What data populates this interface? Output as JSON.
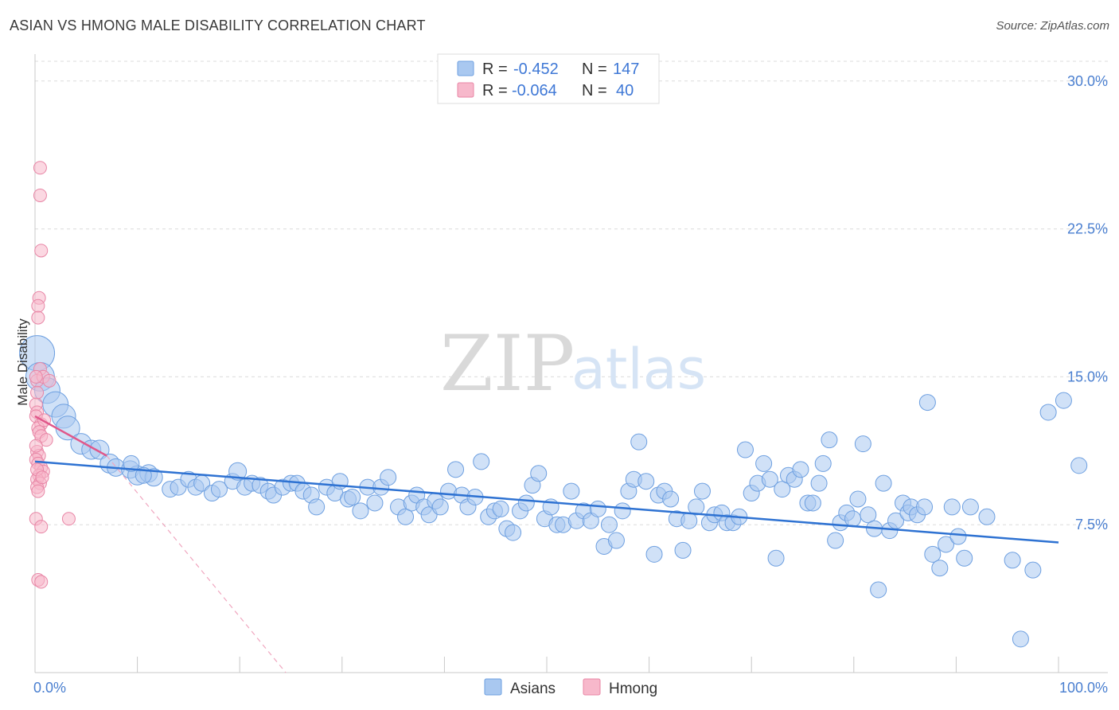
{
  "header": {
    "title": "ASIAN VS HMONG MALE DISABILITY CORRELATION CHART",
    "source": "Source: ZipAtlas.com"
  },
  "watermark": {
    "zip": "ZIP",
    "atlas": "atlas"
  },
  "legend": {
    "rows": [
      {
        "r_label": "R =",
        "r_value": "-0.452",
        "n_label": "N =",
        "n_value": "147",
        "color": "#a9c8f0",
        "stroke": "#6d9fe0"
      },
      {
        "r_label": "R =",
        "r_value": "-0.064",
        "n_label": "N =",
        "n_value": "40",
        "color": "#f7b8cb",
        "stroke": "#e886a6"
      }
    ]
  },
  "bottom_legend": [
    {
      "label": "Asians",
      "color": "#a9c8f0",
      "stroke": "#6d9fe0"
    },
    {
      "label": "Hmong",
      "color": "#f7b8cb",
      "stroke": "#e886a6"
    }
  ],
  "chart_data": {
    "type": "scatter",
    "title": "ASIAN VS HMONG MALE DISABILITY CORRELATION CHART",
    "ylabel": "Male Disability",
    "xlabel": "",
    "xlim": [
      0,
      100
    ],
    "ylim": [
      0,
      31.0
    ],
    "x_tick_labels": [
      {
        "value": 0,
        "label": "0.0%"
      },
      {
        "value": 100,
        "label": "100.0%"
      }
    ],
    "x_minor_ticks": [
      10,
      20,
      30,
      40,
      50,
      60,
      70,
      80,
      90
    ],
    "y_ticks": [
      {
        "value": 7.5,
        "label": "7.5%"
      },
      {
        "value": 15.0,
        "label": "15.0%"
      },
      {
        "value": 22.5,
        "label": "22.5%"
      },
      {
        "value": 30.0,
        "label": "30.0%"
      }
    ],
    "grid": "horizontal-dashed",
    "legend_position": "top-center",
    "series": [
      {
        "name": "Asians",
        "color": "#a9c8f0",
        "stroke": "#6d9fe0",
        "trend": {
          "x": [
            0,
            100
          ],
          "y": [
            10.7,
            6.6
          ],
          "color": "#2e72d2"
        },
        "points": [
          [
            0.2,
            16.2,
            22
          ],
          [
            0.5,
            15.0,
            18
          ],
          [
            1.2,
            14.3,
            16
          ],
          [
            2.0,
            13.6,
            16
          ],
          [
            2.8,
            13.0,
            15
          ],
          [
            3.2,
            12.4,
            15
          ],
          [
            4.5,
            11.6,
            13
          ],
          [
            5.5,
            11.3,
            12
          ],
          [
            6.3,
            11.3,
            12
          ],
          [
            7.3,
            10.6,
            12
          ],
          [
            7.9,
            10.4,
            11
          ],
          [
            9.3,
            10.3,
            11
          ],
          [
            10.0,
            10.0,
            12
          ],
          [
            11.1,
            10.1,
            11
          ],
          [
            11.6,
            9.9,
            11
          ],
          [
            9.4,
            10.6,
            10
          ],
          [
            10.6,
            10.0,
            10
          ],
          [
            13.2,
            9.3,
            10
          ],
          [
            14.0,
            9.4,
            10
          ],
          [
            15.0,
            9.8,
            10
          ],
          [
            15.7,
            9.4,
            10
          ],
          [
            16.3,
            9.6,
            10
          ],
          [
            17.3,
            9.1,
            10
          ],
          [
            18.0,
            9.3,
            10
          ],
          [
            19.3,
            9.7,
            10
          ],
          [
            19.8,
            10.2,
            11
          ],
          [
            20.5,
            9.4,
            10
          ],
          [
            21.2,
            9.6,
            10
          ],
          [
            22.0,
            9.5,
            10
          ],
          [
            22.8,
            9.2,
            10
          ],
          [
            23.3,
            9.0,
            10
          ],
          [
            24.2,
            9.4,
            10
          ],
          [
            25.0,
            9.6,
            10
          ],
          [
            25.6,
            9.6,
            10
          ],
          [
            26.2,
            9.2,
            10
          ],
          [
            27.0,
            9.0,
            10
          ],
          [
            27.5,
            8.4,
            10
          ],
          [
            28.5,
            9.4,
            10
          ],
          [
            29.3,
            9.1,
            10
          ],
          [
            29.8,
            9.7,
            10
          ],
          [
            30.6,
            8.8,
            10
          ],
          [
            31.0,
            8.9,
            10
          ],
          [
            31.8,
            8.2,
            10
          ],
          [
            32.5,
            9.4,
            10
          ],
          [
            33.2,
            8.6,
            10
          ],
          [
            33.8,
            9.4,
            10
          ],
          [
            34.5,
            9.9,
            10
          ],
          [
            35.5,
            8.4,
            10
          ],
          [
            36.2,
            7.9,
            10
          ],
          [
            36.8,
            8.6,
            10
          ],
          [
            37.3,
            9.0,
            10
          ],
          [
            38.0,
            8.4,
            10
          ],
          [
            38.5,
            8.0,
            10
          ],
          [
            39.1,
            8.7,
            10
          ],
          [
            39.6,
            8.4,
            10
          ],
          [
            40.4,
            9.2,
            10
          ],
          [
            41.1,
            10.3,
            10
          ],
          [
            41.7,
            9.0,
            10
          ],
          [
            42.3,
            8.4,
            10
          ],
          [
            43.0,
            8.9,
            10
          ],
          [
            43.6,
            10.7,
            10
          ],
          [
            44.3,
            7.9,
            10
          ],
          [
            44.9,
            8.2,
            10
          ],
          [
            45.5,
            8.3,
            10
          ],
          [
            46.1,
            7.3,
            10
          ],
          [
            46.7,
            7.1,
            10
          ],
          [
            47.4,
            8.2,
            10
          ],
          [
            48.0,
            8.6,
            10
          ],
          [
            48.6,
            9.5,
            10
          ],
          [
            49.2,
            10.1,
            10
          ],
          [
            49.8,
            7.8,
            10
          ],
          [
            50.4,
            8.4,
            10
          ],
          [
            51.0,
            7.5,
            10
          ],
          [
            51.6,
            7.5,
            10
          ],
          [
            52.4,
            9.2,
            10
          ],
          [
            52.9,
            7.7,
            10
          ],
          [
            53.6,
            8.2,
            10
          ],
          [
            54.3,
            7.7,
            10
          ],
          [
            55.0,
            8.3,
            10
          ],
          [
            55.6,
            6.4,
            10
          ],
          [
            56.1,
            7.5,
            10
          ],
          [
            56.8,
            6.7,
            10
          ],
          [
            57.4,
            8.2,
            10
          ],
          [
            58.0,
            9.2,
            10
          ],
          [
            58.5,
            9.8,
            10
          ],
          [
            59.0,
            11.7,
            10
          ],
          [
            59.7,
            9.7,
            10
          ],
          [
            60.5,
            6.0,
            10
          ],
          [
            60.9,
            9.0,
            10
          ],
          [
            61.5,
            9.2,
            10
          ],
          [
            62.1,
            8.8,
            10
          ],
          [
            62.7,
            7.8,
            10
          ],
          [
            63.3,
            6.2,
            10
          ],
          [
            63.9,
            7.7,
            10
          ],
          [
            64.6,
            8.4,
            10
          ],
          [
            65.2,
            9.2,
            10
          ],
          [
            65.9,
            7.6,
            10
          ],
          [
            66.4,
            8.0,
            10
          ],
          [
            67.1,
            8.1,
            10
          ],
          [
            67.6,
            7.6,
            10
          ],
          [
            68.2,
            7.6,
            10
          ],
          [
            68.8,
            7.9,
            10
          ],
          [
            69.4,
            11.3,
            10
          ],
          [
            70.0,
            9.1,
            10
          ],
          [
            70.6,
            9.6,
            10
          ],
          [
            71.2,
            10.6,
            10
          ],
          [
            71.8,
            9.8,
            10
          ],
          [
            72.4,
            5.8,
            10
          ],
          [
            73.0,
            9.3,
            10
          ],
          [
            73.6,
            10.0,
            10
          ],
          [
            74.2,
            9.8,
            10
          ],
          [
            74.8,
            10.3,
            10
          ],
          [
            75.5,
            8.6,
            10
          ],
          [
            76.0,
            8.6,
            10
          ],
          [
            76.6,
            9.6,
            10
          ],
          [
            77.0,
            10.6,
            10
          ],
          [
            77.6,
            11.8,
            10
          ],
          [
            78.2,
            6.7,
            10
          ],
          [
            78.7,
            7.6,
            10
          ],
          [
            79.3,
            8.1,
            10
          ],
          [
            79.9,
            7.8,
            10
          ],
          [
            80.4,
            8.8,
            10
          ],
          [
            80.9,
            11.6,
            10
          ],
          [
            81.4,
            8.0,
            10
          ],
          [
            82.0,
            7.3,
            10
          ],
          [
            82.4,
            4.2,
            10
          ],
          [
            82.9,
            9.6,
            10
          ],
          [
            83.5,
            7.2,
            10
          ],
          [
            84.1,
            7.7,
            10
          ],
          [
            84.8,
            8.6,
            10
          ],
          [
            85.3,
            8.1,
            10
          ],
          [
            85.6,
            8.4,
            10
          ],
          [
            86.2,
            8.0,
            10
          ],
          [
            86.9,
            8.4,
            10
          ],
          [
            87.2,
            13.7,
            10
          ],
          [
            87.7,
            6.0,
            10
          ],
          [
            88.4,
            5.3,
            10
          ],
          [
            89.0,
            6.5,
            10
          ],
          [
            89.6,
            8.4,
            10
          ],
          [
            90.2,
            6.9,
            10
          ],
          [
            90.8,
            5.8,
            10
          ],
          [
            91.4,
            8.4,
            10
          ],
          [
            93.0,
            7.9,
            10
          ],
          [
            95.5,
            5.7,
            10
          ],
          [
            96.3,
            1.7,
            10
          ],
          [
            97.5,
            5.2,
            10
          ],
          [
            99.0,
            13.2,
            10
          ],
          [
            100.5,
            13.8,
            10
          ],
          [
            102.0,
            10.5,
            10
          ]
        ]
      },
      {
        "name": "Hmong",
        "color": "#f7b8cb",
        "stroke": "#e886a6",
        "trend": {
          "x": [
            0,
            7.0
          ],
          "y": [
            13.0,
            11.0
          ],
          "color": "#e0578a"
        },
        "trend_extension": {
          "x": [
            7.0,
            24.5
          ],
          "y": [
            11.0,
            0.0
          ],
          "color": "#f0a6bf"
        },
        "points": [
          [
            0.5,
            25.6,
            8
          ],
          [
            0.5,
            24.2,
            8
          ],
          [
            0.6,
            21.4,
            8
          ],
          [
            0.4,
            19.0,
            8
          ],
          [
            0.3,
            18.6,
            8
          ],
          [
            0.3,
            18.0,
            8
          ],
          [
            0.5,
            15.4,
            8
          ],
          [
            0.2,
            14.8,
            8
          ],
          [
            0.8,
            15.0,
            8
          ],
          [
            1.4,
            14.8,
            8
          ],
          [
            0.2,
            14.2,
            8
          ],
          [
            0.1,
            13.6,
            8
          ],
          [
            0.2,
            13.2,
            8
          ],
          [
            0.1,
            13.0,
            8
          ],
          [
            0.6,
            12.6,
            8
          ],
          [
            0.3,
            12.4,
            8
          ],
          [
            0.4,
            12.2,
            8
          ],
          [
            0.6,
            12.0,
            8
          ],
          [
            0.2,
            11.2,
            8
          ],
          [
            0.4,
            11.0,
            8
          ],
          [
            0.1,
            10.8,
            8
          ],
          [
            0.3,
            10.6,
            8
          ],
          [
            0.6,
            10.4,
            8
          ],
          [
            0.8,
            10.2,
            8
          ],
          [
            0.4,
            10.0,
            8
          ],
          [
            0.2,
            9.8,
            8
          ],
          [
            0.5,
            9.6,
            8
          ],
          [
            0.2,
            9.4,
            8
          ],
          [
            0.3,
            9.2,
            8
          ],
          [
            0.1,
            7.8,
            8
          ],
          [
            0.6,
            7.4,
            8
          ],
          [
            3.3,
            7.8,
            8
          ],
          [
            0.3,
            4.7,
            8
          ],
          [
            0.6,
            4.6,
            8
          ],
          [
            0.9,
            12.8,
            8
          ],
          [
            1.1,
            11.8,
            8
          ],
          [
            0.1,
            11.5,
            8
          ],
          [
            0.2,
            10.3,
            8
          ],
          [
            0.7,
            9.9,
            8
          ],
          [
            0.1,
            15.0,
            8
          ]
        ]
      }
    ]
  }
}
